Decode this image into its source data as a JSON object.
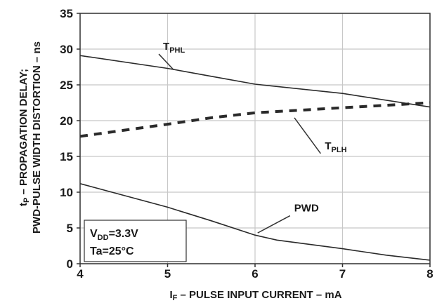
{
  "chart_data": {
    "type": "line",
    "xlabel": "I",
    "xlabel_sub": "F",
    "xlabel_rest": " – PULSE INPUT CURRENT – mA",
    "ylabel_line1_main": "t",
    "ylabel_line1_sub": "P",
    "ylabel_line1_rest": " – PROPAGATION DELAY;",
    "ylabel_line2": "PWD-PULSE WIDTH DISTORTION – ns",
    "xlim": [
      4,
      8
    ],
    "ylim": [
      0,
      35
    ],
    "xticks": [
      "4",
      "5",
      "6",
      "7",
      "8"
    ],
    "yticks": [
      "0",
      "5",
      "10",
      "15",
      "20",
      "25",
      "30",
      "35"
    ],
    "grid": true,
    "series": [
      {
        "name": "T_PHL",
        "label_main": "T",
        "label_sub": "PHL",
        "style": "solid",
        "color": "#2a2a2a",
        "x": [
          4,
          5,
          5.5,
          6,
          7,
          8
        ],
        "y": [
          29.1,
          27.3,
          26.2,
          25.1,
          23.8,
          21.9
        ]
      },
      {
        "name": "T_PLH",
        "label_main": "T",
        "label_sub": "PLH",
        "style": "dashed",
        "color": "#2a2a2a",
        "x": [
          4,
          5,
          5.5,
          6,
          7,
          8
        ],
        "y": [
          17.8,
          19.5,
          20.4,
          21.1,
          21.8,
          22.5
        ]
      },
      {
        "name": "PWD",
        "label_main": "PWD",
        "label_sub": "",
        "style": "solid",
        "color": "#2a2a2a",
        "x": [
          4,
          5,
          5.5,
          6,
          6.25,
          7,
          7.5,
          8
        ],
        "y": [
          11.2,
          7.9,
          6.0,
          4.0,
          3.3,
          2.1,
          1.2,
          0.5
        ]
      }
    ],
    "annotations": [
      {
        "series": 0,
        "label_x": 4.9,
        "label_y": 29.7,
        "point_x": 5.07,
        "point_y": 27.1
      },
      {
        "series": 1,
        "label_x": 6.75,
        "label_y": 15.8,
        "point_x": 6.45,
        "point_y": 20.4
      },
      {
        "series": 2,
        "label_x": 6.4,
        "label_y": 7.1,
        "point_x": 6.03,
        "point_y": 4.3
      }
    ],
    "conditions": {
      "vdd_main": "V",
      "vdd_sub": "DD",
      "vdd_value": "=3.3V",
      "ta": "Ta=25°C"
    }
  }
}
